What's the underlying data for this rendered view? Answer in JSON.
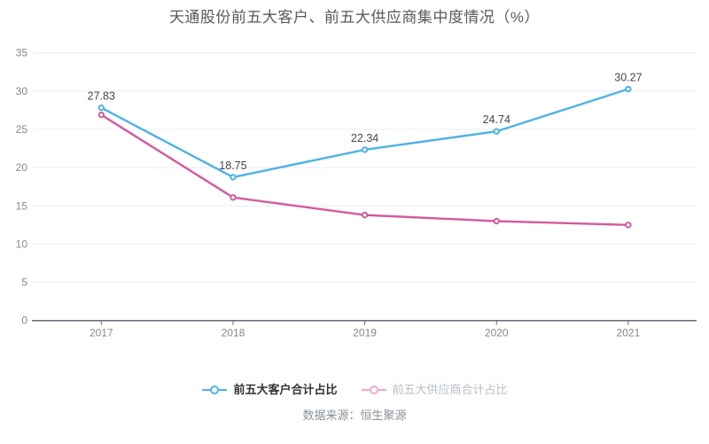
{
  "title": "天通股份前五大客户、前五大供应商集中度情况（%）",
  "source": "数据来源：恒生聚源",
  "chart_data": {
    "type": "line",
    "categories": [
      "2017",
      "2018",
      "2019",
      "2020",
      "2021"
    ],
    "series": [
      {
        "name": "前五大客户合计占比",
        "values": [
          27.83,
          18.75,
          22.34,
          24.74,
          30.27
        ],
        "color": "#4db3e6",
        "labels_visible": true
      },
      {
        "name": "前五大供应商合计占比",
        "values": [
          26.9,
          16.1,
          13.8,
          13.0,
          12.5
        ],
        "color": "#d45a9e",
        "labels_visible": false
      }
    ],
    "ylim": [
      0,
      35
    ],
    "y_step": 5,
    "grid": true,
    "legend_position": "bottom",
    "label_color": "#464646",
    "axis_line_color": "#646b78",
    "grid_line_color": "#e8ecf4",
    "tick_label_color": "#838892"
  },
  "legend": {
    "items": [
      {
        "label": "前五大客户合计占比",
        "color": "#4db3e6",
        "text_color": "#333333",
        "emphasis": true
      },
      {
        "label": "前五大供应商合计占比",
        "color": "#f3a8cd",
        "text_color": "#b9bec6",
        "emphasis": false
      }
    ]
  }
}
